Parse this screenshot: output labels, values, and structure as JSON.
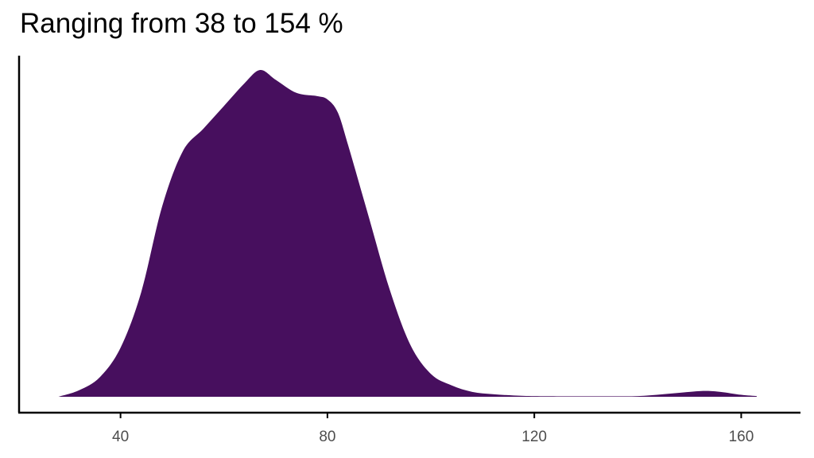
{
  "title": "Ranging from 38 to 154 %",
  "colors": {
    "fill": "#470F5E",
    "axis": "#000000",
    "tick_label": "#4d4d4d"
  },
  "chart_data": {
    "type": "area",
    "title": "Ranging from 38 to 154 %",
    "xlabel": "",
    "ylabel": "",
    "grid": false,
    "xlim": [
      21,
      171
    ],
    "ylim": [
      0,
      1
    ],
    "x_ticks": [
      40,
      80,
      120,
      160
    ],
    "x_tick_labels": [
      "40",
      "80",
      "120",
      "160"
    ],
    "series": [
      {
        "x": [
          28,
          32,
          36,
          40,
          44,
          48,
          52,
          56,
          60,
          64,
          67,
          70,
          74,
          78,
          80,
          82,
          84,
          88,
          92,
          96,
          100,
          104,
          108,
          112,
          116,
          120,
          125,
          130,
          135,
          140,
          145,
          150,
          153,
          156,
          160,
          163
        ],
        "y": [
          0.0,
          0.02,
          0.06,
          0.15,
          0.32,
          0.58,
          0.75,
          0.82,
          0.89,
          0.96,
          1.0,
          0.97,
          0.93,
          0.92,
          0.91,
          0.87,
          0.77,
          0.55,
          0.33,
          0.16,
          0.07,
          0.035,
          0.015,
          0.008,
          0.004,
          0.002,
          0.0015,
          0.0015,
          0.0015,
          0.002,
          0.008,
          0.015,
          0.018,
          0.015,
          0.006,
          0.002
        ]
      }
    ]
  }
}
